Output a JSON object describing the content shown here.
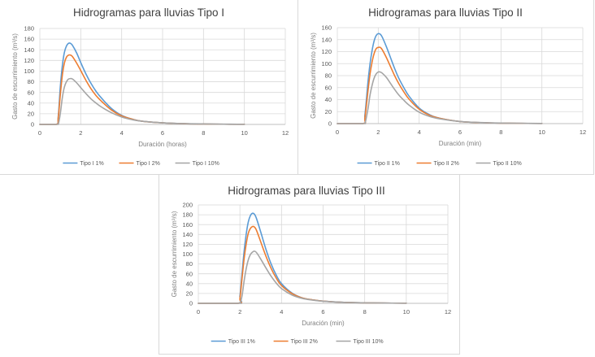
{
  "colors": {
    "s1": "#5B9BD5",
    "s2": "#ED7D31",
    "s3": "#A5A5A5"
  },
  "chart_data": [
    {
      "type": "line",
      "title": "Hidrogramas para lluvias Tipo I",
      "xlabel": "Duración (horas)",
      "ylabel": "Gasto de escurrimiento (m³/s)",
      "xlim": [
        0,
        12
      ],
      "ylim": [
        0,
        180
      ],
      "xticks": [
        0,
        2,
        4,
        6,
        8,
        10,
        12
      ],
      "yticks": [
        0,
        20,
        40,
        60,
        80,
        100,
        120,
        140,
        160,
        180
      ],
      "grid": true,
      "legend_position": "bottom",
      "x": [
        0,
        0.8,
        0.9,
        1.0,
        1.1,
        1.2,
        1.3,
        1.4,
        1.5,
        1.6,
        1.8,
        2.0,
        2.25,
        2.5,
        2.75,
        3.0,
        3.5,
        4.0,
        4.5,
        5,
        6,
        7,
        8,
        9,
        10
      ],
      "series": [
        {
          "name": "Tipo I 1%",
          "values": [
            0,
            0,
            15,
            70,
            110,
            135,
            147,
            152,
            152,
            148,
            134,
            116,
            95,
            77,
            62,
            50,
            30,
            17,
            10,
            6,
            3,
            1.5,
            0.8,
            0.4,
            0.2
          ]
        },
        {
          "name": "Tipo I 2%",
          "values": [
            0,
            0,
            12,
            55,
            92,
            115,
            126,
            130,
            130,
            127,
            115,
            101,
            83,
            67,
            54,
            44,
            27,
            16,
            10,
            6,
            3,
            1.5,
            0.8,
            0.4,
            0.2
          ]
        },
        {
          "name": "Tipo I 10%",
          "values": [
            0,
            0,
            0,
            20,
            50,
            70,
            80,
            85,
            86,
            85,
            78,
            69,
            58,
            48,
            40,
            33,
            22,
            14,
            9,
            6,
            3,
            1.6,
            0.9,
            0.5,
            0.2
          ]
        }
      ]
    },
    {
      "type": "line",
      "title": "Hidrogramas para lluvias Tipo II",
      "xlabel": "Duración (min)",
      "ylabel": "Gasto de escurrimiento (m³/s)",
      "xlim": [
        0,
        12
      ],
      "ylim": [
        0,
        160
      ],
      "xticks": [
        0,
        2,
        4,
        6,
        8,
        10,
        12
      ],
      "yticks": [
        0,
        20,
        40,
        60,
        80,
        100,
        120,
        140,
        160
      ],
      "grid": true,
      "legend_position": "bottom",
      "x": [
        0,
        1.25,
        1.35,
        1.5,
        1.6,
        1.7,
        1.8,
        1.9,
        2.0,
        2.1,
        2.2,
        2.4,
        2.6,
        2.8,
        3.0,
        3.25,
        3.5,
        4.0,
        4.5,
        5,
        6,
        7,
        8,
        9,
        10
      ],
      "series": [
        {
          "name": "Tipo II 1%",
          "values": [
            0,
            0,
            15,
            70,
            100,
            122,
            138,
            147,
            150,
            149,
            144,
            128,
            110,
            92,
            76,
            60,
            46,
            26,
            15,
            9,
            3.5,
            1.7,
            0.8,
            0.4,
            0.2
          ]
        },
        {
          "name": "Tipo II 2%",
          "values": [
            0,
            0,
            10,
            55,
            83,
            103,
            117,
            125,
            127,
            127,
            123,
            110,
            95,
            80,
            67,
            53,
            41,
            24,
            14,
            9,
            3.5,
            1.7,
            0.8,
            0.4,
            0.2
          ]
        },
        {
          "name": "Tipo II 10%",
          "values": [
            0,
            0,
            0,
            25,
            48,
            64,
            76,
            83,
            86,
            86,
            84,
            77,
            67,
            57,
            48,
            39,
            31,
            19,
            12,
            8,
            3.5,
            1.8,
            0.9,
            0.5,
            0.2
          ]
        }
      ]
    },
    {
      "type": "line",
      "title": "Hidrogramas para lluvias Tipo III",
      "xlabel": "Duración (min)",
      "ylabel": "Gasto de escurrimiento (m³/s)",
      "xlim": [
        0,
        12
      ],
      "ylim": [
        0,
        200
      ],
      "xticks": [
        0,
        2,
        4,
        6,
        8,
        10,
        12
      ],
      "yticks": [
        0,
        20,
        40,
        60,
        80,
        100,
        120,
        140,
        160,
        180,
        200
      ],
      "grid": true,
      "legend_position": "bottom",
      "x": [
        0,
        1.9,
        2.0,
        2.1,
        2.2,
        2.3,
        2.4,
        2.5,
        2.6,
        2.7,
        2.8,
        3.0,
        3.25,
        3.5,
        3.75,
        4.0,
        4.5,
        5,
        5.5,
        6,
        7,
        8,
        9,
        10
      ],
      "series": [
        {
          "name": "Tipo III 1%",
          "values": [
            0,
            0,
            15,
            60,
            105,
            140,
            165,
            178,
            183,
            181,
            172,
            145,
            110,
            80,
            57,
            40,
            21,
            11,
            7,
            4.5,
            2,
            1,
            0.5,
            0.2
          ]
        },
        {
          "name": "Tipo III 2%",
          "values": [
            0,
            0,
            10,
            50,
            90,
            120,
            142,
            152,
            156,
            155,
            148,
            125,
            96,
            71,
            51,
            36,
            20,
            11,
            7,
            4.5,
            2,
            1,
            0.5,
            0.2
          ]
        },
        {
          "name": "Tipo III 10%",
          "values": [
            0,
            0,
            0,
            15,
            45,
            70,
            88,
            99,
            104,
            106,
            103,
            90,
            72,
            55,
            41,
            30,
            17,
            10,
            6.5,
            4.2,
            2,
            1,
            0.5,
            0.2
          ]
        }
      ]
    }
  ]
}
